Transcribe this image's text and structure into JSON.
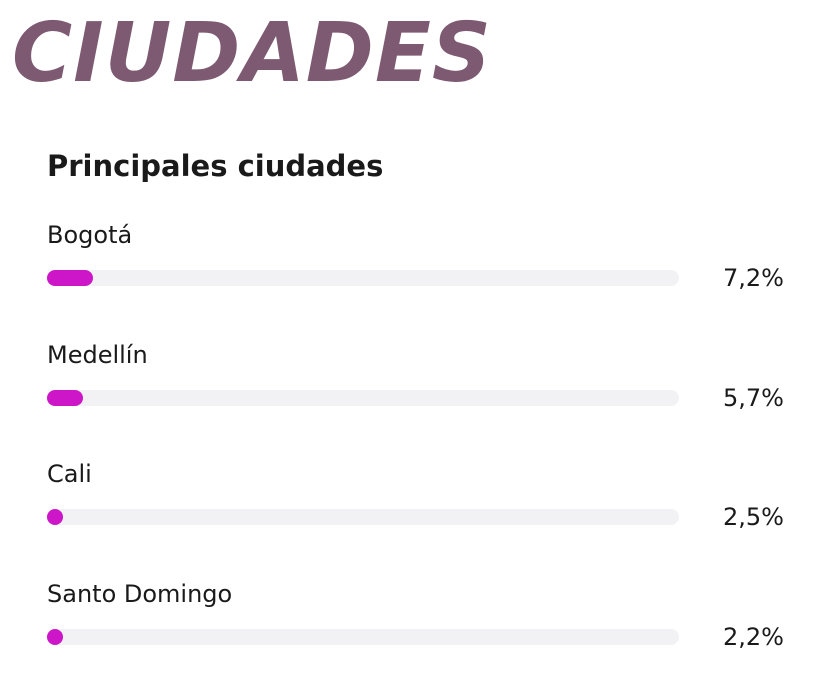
{
  "header": {
    "title": "CIUDADES"
  },
  "colors": {
    "title": "#7d5a72",
    "bar_fill": "#cc16c8",
    "bar_track": "#f2f2f5",
    "text": "#1a1a1a"
  },
  "chart_data": {
    "type": "bar",
    "orientation": "horizontal",
    "title": "Principales ciudades",
    "categories": [
      "Bogotá",
      "Medellín",
      "Cali",
      "Santo Domingo"
    ],
    "values": [
      7.2,
      5.7,
      2.5,
      2.2
    ],
    "value_labels": [
      "7,2%",
      "5,7%",
      "2,5%",
      "2,2%"
    ],
    "unit": "%",
    "xlim": [
      0,
      100
    ],
    "grid": false,
    "legend": false
  }
}
